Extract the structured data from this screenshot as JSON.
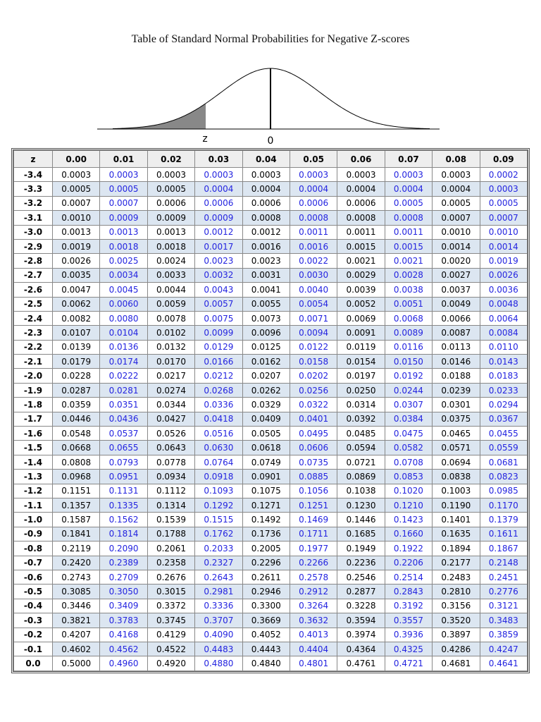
{
  "title": "Table of Standard Normal Probabilities for Negative Z-scores",
  "figure": {
    "z_label": "z",
    "zero_label": "0"
  },
  "table": {
    "header": [
      "z",
      "0.00",
      "0.01",
      "0.02",
      "0.03",
      "0.04",
      "0.05",
      "0.06",
      "0.07",
      "0.08",
      "0.09"
    ],
    "rows": [
      [
        "-3.4",
        "0.0003",
        "0.0003",
        "0.0003",
        "0.0003",
        "0.0003",
        "0.0003",
        "0.0003",
        "0.0003",
        "0.0003",
        "0.0002"
      ],
      [
        "-3.3",
        "0.0005",
        "0.0005",
        "0.0005",
        "0.0004",
        "0.0004",
        "0.0004",
        "0.0004",
        "0.0004",
        "0.0004",
        "0.0003"
      ],
      [
        "-3.2",
        "0.0007",
        "0.0007",
        "0.0006",
        "0.0006",
        "0.0006",
        "0.0006",
        "0.0006",
        "0.0005",
        "0.0005",
        "0.0005"
      ],
      [
        "-3.1",
        "0.0010",
        "0.0009",
        "0.0009",
        "0.0009",
        "0.0008",
        "0.0008",
        "0.0008",
        "0.0008",
        "0.0007",
        "0.0007"
      ],
      [
        "-3.0",
        "0.0013",
        "0.0013",
        "0.0013",
        "0.0012",
        "0.0012",
        "0.0011",
        "0.0011",
        "0.0011",
        "0.0010",
        "0.0010"
      ],
      [
        "-2.9",
        "0.0019",
        "0.0018",
        "0.0018",
        "0.0017",
        "0.0016",
        "0.0016",
        "0.0015",
        "0.0015",
        "0.0014",
        "0.0014"
      ],
      [
        "-2.8",
        "0.0026",
        "0.0025",
        "0.0024",
        "0.0023",
        "0.0023",
        "0.0022",
        "0.0021",
        "0.0021",
        "0.0020",
        "0.0019"
      ],
      [
        "-2.7",
        "0.0035",
        "0.0034",
        "0.0033",
        "0.0032",
        "0.0031",
        "0.0030",
        "0.0029",
        "0.0028",
        "0.0027",
        "0.0026"
      ],
      [
        "-2.6",
        "0.0047",
        "0.0045",
        "0.0044",
        "0.0043",
        "0.0041",
        "0.0040",
        "0.0039",
        "0.0038",
        "0.0037",
        "0.0036"
      ],
      [
        "-2.5",
        "0.0062",
        "0.0060",
        "0.0059",
        "0.0057",
        "0.0055",
        "0.0054",
        "0.0052",
        "0.0051",
        "0.0049",
        "0.0048"
      ],
      [
        "-2.4",
        "0.0082",
        "0.0080",
        "0.0078",
        "0.0075",
        "0.0073",
        "0.0071",
        "0.0069",
        "0.0068",
        "0.0066",
        "0.0064"
      ],
      [
        "-2.3",
        "0.0107",
        "0.0104",
        "0.0102",
        "0.0099",
        "0.0096",
        "0.0094",
        "0.0091",
        "0.0089",
        "0.0087",
        "0.0084"
      ],
      [
        "-2.2",
        "0.0139",
        "0.0136",
        "0.0132",
        "0.0129",
        "0.0125",
        "0.0122",
        "0.0119",
        "0.0116",
        "0.0113",
        "0.0110"
      ],
      [
        "-2.1",
        "0.0179",
        "0.0174",
        "0.0170",
        "0.0166",
        "0.0162",
        "0.0158",
        "0.0154",
        "0.0150",
        "0.0146",
        "0.0143"
      ],
      [
        "-2.0",
        "0.0228",
        "0.0222",
        "0.0217",
        "0.0212",
        "0.0207",
        "0.0202",
        "0.0197",
        "0.0192",
        "0.0188",
        "0.0183"
      ],
      [
        "-1.9",
        "0.0287",
        "0.0281",
        "0.0274",
        "0.0268",
        "0.0262",
        "0.0256",
        "0.0250",
        "0.0244",
        "0.0239",
        "0.0233"
      ],
      [
        "-1.8",
        "0.0359",
        "0.0351",
        "0.0344",
        "0.0336",
        "0.0329",
        "0.0322",
        "0.0314",
        "0.0307",
        "0.0301",
        "0.0294"
      ],
      [
        "-1.7",
        "0.0446",
        "0.0436",
        "0.0427",
        "0.0418",
        "0.0409",
        "0.0401",
        "0.0392",
        "0.0384",
        "0.0375",
        "0.0367"
      ],
      [
        "-1.6",
        "0.0548",
        "0.0537",
        "0.0526",
        "0.0516",
        "0.0505",
        "0.0495",
        "0.0485",
        "0.0475",
        "0.0465",
        "0.0455"
      ],
      [
        "-1.5",
        "0.0668",
        "0.0655",
        "0.0643",
        "0.0630",
        "0.0618",
        "0.0606",
        "0.0594",
        "0.0582",
        "0.0571",
        "0.0559"
      ],
      [
        "-1.4",
        "0.0808",
        "0.0793",
        "0.0778",
        "0.0764",
        "0.0749",
        "0.0735",
        "0.0721",
        "0.0708",
        "0.0694",
        "0.0681"
      ],
      [
        "-1.3",
        "0.0968",
        "0.0951",
        "0.0934",
        "0.0918",
        "0.0901",
        "0.0885",
        "0.0869",
        "0.0853",
        "0.0838",
        "0.0823"
      ],
      [
        "-1.2",
        "0.1151",
        "0.1131",
        "0.1112",
        "0.1093",
        "0.1075",
        "0.1056",
        "0.1038",
        "0.1020",
        "0.1003",
        "0.0985"
      ],
      [
        "-1.1",
        "0.1357",
        "0.1335",
        "0.1314",
        "0.1292",
        "0.1271",
        "0.1251",
        "0.1230",
        "0.1210",
        "0.1190",
        "0.1170"
      ],
      [
        "-1.0",
        "0.1587",
        "0.1562",
        "0.1539",
        "0.1515",
        "0.1492",
        "0.1469",
        "0.1446",
        "0.1423",
        "0.1401",
        "0.1379"
      ],
      [
        "-0.9",
        "0.1841",
        "0.1814",
        "0.1788",
        "0.1762",
        "0.1736",
        "0.1711",
        "0.1685",
        "0.1660",
        "0.1635",
        "0.1611"
      ],
      [
        "-0.8",
        "0.2119",
        "0.2090",
        "0.2061",
        "0.2033",
        "0.2005",
        "0.1977",
        "0.1949",
        "0.1922",
        "0.1894",
        "0.1867"
      ],
      [
        "-0.7",
        "0.2420",
        "0.2389",
        "0.2358",
        "0.2327",
        "0.2296",
        "0.2266",
        "0.2236",
        "0.2206",
        "0.2177",
        "0.2148"
      ],
      [
        "-0.6",
        "0.2743",
        "0.2709",
        "0.2676",
        "0.2643",
        "0.2611",
        "0.2578",
        "0.2546",
        "0.2514",
        "0.2483",
        "0.2451"
      ],
      [
        "-0.5",
        "0.3085",
        "0.3050",
        "0.3015",
        "0.2981",
        "0.2946",
        "0.2912",
        "0.2877",
        "0.2843",
        "0.2810",
        "0.2776"
      ],
      [
        "-0.4",
        "0.3446",
        "0.3409",
        "0.3372",
        "0.3336",
        "0.3300",
        "0.3264",
        "0.3228",
        "0.3192",
        "0.3156",
        "0.3121"
      ],
      [
        "-0.3",
        "0.3821",
        "0.3783",
        "0.3745",
        "0.3707",
        "0.3669",
        "0.3632",
        "0.3594",
        "0.3557",
        "0.3520",
        "0.3483"
      ],
      [
        "-0.2",
        "0.4207",
        "0.4168",
        "0.4129",
        "0.4090",
        "0.4052",
        "0.4013",
        "0.3974",
        "0.3936",
        "0.3897",
        "0.3859"
      ],
      [
        "-0.1",
        "0.4602",
        "0.4562",
        "0.4522",
        "0.4483",
        "0.4443",
        "0.4404",
        "0.4364",
        "0.4325",
        "0.4286",
        "0.4247"
      ],
      [
        "0.0",
        "0.5000",
        "0.4960",
        "0.4920",
        "0.4880",
        "0.4840",
        "0.4801",
        "0.4761",
        "0.4721",
        "0.4681",
        "0.4641"
      ]
    ]
  }
}
